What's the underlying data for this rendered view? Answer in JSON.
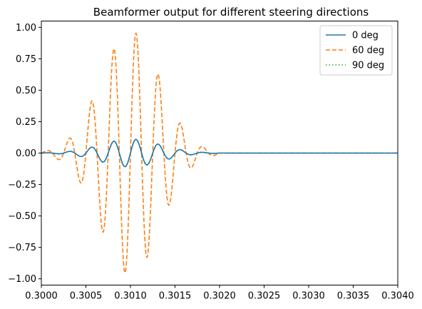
{
  "chart_data": {
    "type": "line",
    "title": "Beamformer output for different steering directions",
    "xlabel": "",
    "ylabel": "",
    "xlim": [
      0.3,
      0.304
    ],
    "ylim": [
      -1.05,
      1.05
    ],
    "grid": false,
    "legend_position": "top-right",
    "x_ticks": [
      "0.3000",
      "0.3005",
      "0.3010",
      "0.3015",
      "0.3020",
      "0.3025",
      "0.3030",
      "0.3035",
      "0.3040"
    ],
    "y_ticks": [
      "1.00",
      "0.75",
      "0.50",
      "0.25",
      "0.00",
      "−0.25",
      "−0.50",
      "−0.75",
      "−1.00"
    ],
    "signal": {
      "x_start": 0.3,
      "x_end": 0.304,
      "pulse_start": 0.3,
      "pulse_end": 0.302,
      "frequency_hz": 4000
    },
    "series": [
      {
        "name": "0 deg",
        "color": "#1f77b4",
        "style": "solid",
        "peak_amplitude": 0.11,
        "phase_offset_s": 0.0
      },
      {
        "name": "60 deg",
        "color": "#ff7f0e",
        "style": "dashed",
        "peak_amplitude": 0.97,
        "phase_offset_s": 0.0
      },
      {
        "name": "90 deg",
        "color": "#2ca02c",
        "style": "dotted",
        "peak_amplitude": 0.11,
        "phase_offset_s": 0.0
      }
    ]
  }
}
